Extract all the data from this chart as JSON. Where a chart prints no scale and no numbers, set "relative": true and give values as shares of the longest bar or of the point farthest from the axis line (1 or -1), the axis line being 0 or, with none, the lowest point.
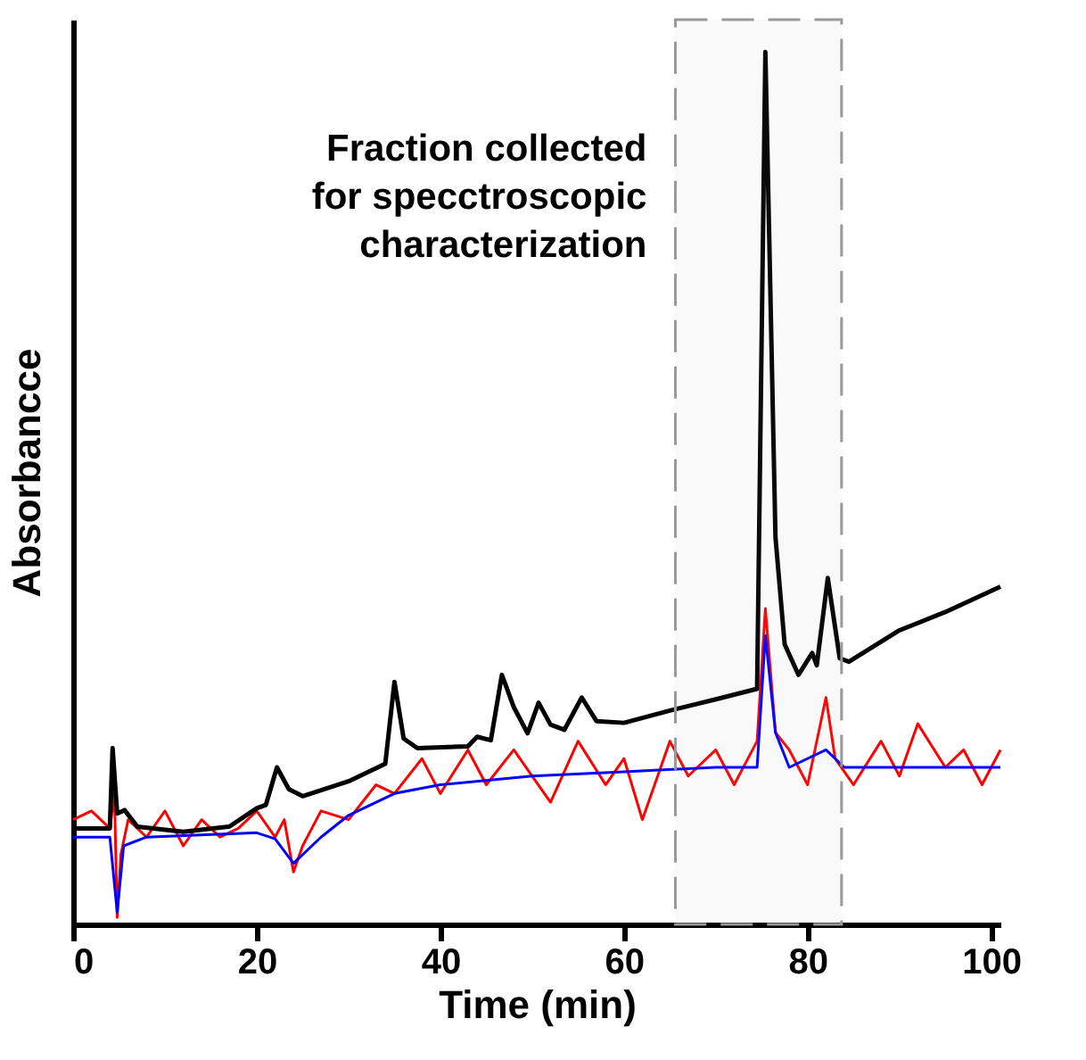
{
  "chart_data": {
    "type": "line",
    "relative": true,
    "xlabel": "Time (min)",
    "ylabel": "Absorbancce",
    "xlim": [
      0,
      101
    ],
    "xticks": [
      0,
      20,
      40,
      60,
      80,
      100
    ],
    "tick_labels": "x",
    "grid": false,
    "legend": false,
    "line_style": "solid",
    "bands": [
      {
        "axis": "x",
        "from": 65.6,
        "to": 83.7,
        "label": "Fraction collected\nfor specctroscopic\ncharacterization",
        "color": "#999999"
      }
    ],
    "series": [
      {
        "color": "#ff0000",
        "x": [
          0,
          2,
          4,
          4.5,
          4.8,
          5.2,
          6,
          8,
          10,
          12,
          14,
          16,
          18,
          20,
          22,
          23,
          24,
          25,
          27,
          30,
          33,
          35,
          38,
          40,
          43,
          45,
          48,
          50,
          52,
          55,
          58,
          60,
          62,
          65,
          67,
          70,
          72,
          74.5,
          75.4,
          76.5,
          78,
          80,
          82,
          83,
          85,
          88,
          90,
          92,
          95,
          97,
          99,
          101
        ],
        "values": [
          0.12,
          0.13,
          0.11,
          0.15,
          0.008,
          0.08,
          0.12,
          0.1,
          0.13,
          0.09,
          0.12,
          0.1,
          0.11,
          0.13,
          0.1,
          0.12,
          0.06,
          0.09,
          0.13,
          0.12,
          0.16,
          0.15,
          0.19,
          0.15,
          0.2,
          0.16,
          0.2,
          0.17,
          0.14,
          0.21,
          0.16,
          0.19,
          0.12,
          0.21,
          0.17,
          0.2,
          0.16,
          0.21,
          0.362,
          0.22,
          0.2,
          0.16,
          0.26,
          0.19,
          0.16,
          0.21,
          0.17,
          0.23,
          0.18,
          0.2,
          0.16,
          0.2
        ]
      },
      {
        "color": "#0000ff",
        "x": [
          0,
          4,
          4.8,
          5.5,
          8,
          20,
          22,
          24,
          27,
          30,
          35,
          40,
          50,
          60,
          70,
          74.5,
          75.4,
          76.5,
          78,
          82,
          84,
          90,
          101
        ],
        "values": [
          0.1,
          0.1,
          0.014,
          0.09,
          0.1,
          0.105,
          0.098,
          0.07,
          0.1,
          0.125,
          0.15,
          0.16,
          0.17,
          0.175,
          0.18,
          0.18,
          0.331,
          0.22,
          0.18,
          0.2,
          0.18,
          0.18,
          0.18
        ]
      },
      {
        "color": "#000000",
        "x": [
          0,
          4,
          4.3,
          4.8,
          5.6,
          7,
          12,
          17,
          20,
          21,
          22.2,
          23.5,
          25,
          30,
          34,
          35,
          36,
          37.5,
          43,
          44,
          45.5,
          46.7,
          48,
          49.5,
          50.7,
          52,
          53.5,
          55.4,
          57,
          60,
          65,
          70,
          74.5,
          75.4,
          76.5,
          77.5,
          79,
          80.5,
          81,
          82.2,
          83.5,
          84.5,
          90,
          95,
          101
        ],
        "values": [
          0.11,
          0.11,
          0.202,
          0.127,
          0.131,
          0.112,
          0.106,
          0.112,
          0.133,
          0.137,
          0.18,
          0.155,
          0.147,
          0.164,
          0.184,
          0.278,
          0.213,
          0.202,
          0.204,
          0.215,
          0.211,
          0.286,
          0.249,
          0.219,
          0.254,
          0.229,
          0.223,
          0.26,
          0.233,
          0.231,
          0.245,
          0.258,
          0.27,
          1,
          0.444,
          0.321,
          0.286,
          0.311,
          0.297,
          0.397,
          0.305,
          0.301,
          0.337,
          0.358,
          0.387
        ]
      }
    ]
  }
}
